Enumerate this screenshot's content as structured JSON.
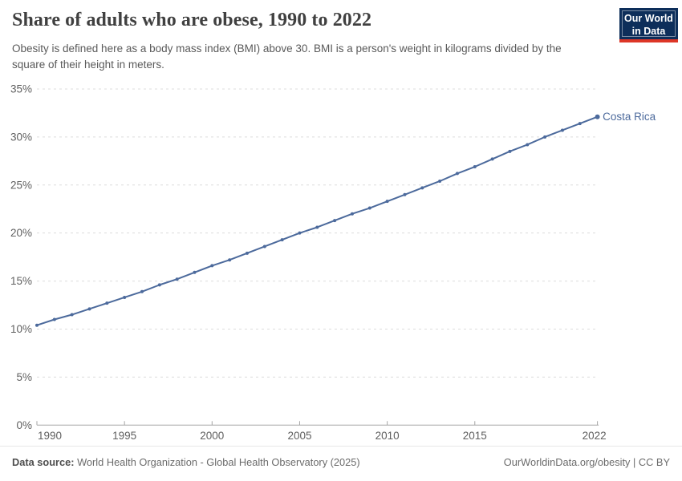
{
  "header": {
    "title": "Share of adults who are obese, 1990 to 2022",
    "subtitle": "Obesity is defined here as a body mass index (BMI) above 30. BMI is a person's weight in kilograms divided by the square of their height in meters.",
    "logo": {
      "line1": "Our World",
      "line2": "in Data",
      "bg_color": "#0d2e5a",
      "stripe_color": "#dd3627"
    }
  },
  "chart_data": {
    "type": "line",
    "title": "Share of adults who are obese, 1990 to 2022",
    "x": [
      1990,
      1991,
      1992,
      1993,
      1994,
      1995,
      1996,
      1997,
      1998,
      1999,
      2000,
      2001,
      2002,
      2003,
      2004,
      2005,
      2006,
      2007,
      2008,
      2009,
      2010,
      2011,
      2012,
      2013,
      2014,
      2015,
      2016,
      2017,
      2018,
      2019,
      2020,
      2021,
      2022
    ],
    "series": [
      {
        "name": "Costa Rica",
        "color": "#4C6A9C",
        "values": [
          10.4,
          11.0,
          11.5,
          12.1,
          12.7,
          13.3,
          13.9,
          14.6,
          15.2,
          15.9,
          16.6,
          17.2,
          17.9,
          18.6,
          19.3,
          20.0,
          20.6,
          21.3,
          22.0,
          22.6,
          23.3,
          24.0,
          24.7,
          25.4,
          26.2,
          26.9,
          27.7,
          28.5,
          29.2,
          30.0,
          30.7,
          31.4,
          32.1
        ]
      }
    ],
    "xlabel": "",
    "ylabel": "",
    "xlim": [
      1990,
      2022
    ],
    "ylim": [
      0,
      35
    ],
    "xticks": [
      1990,
      1995,
      2000,
      2005,
      2010,
      2015,
      2022
    ],
    "yticks": [
      0,
      5,
      10,
      15,
      20,
      25,
      30,
      35
    ],
    "ytick_suffix": "%",
    "grid": "horizontal-dashed",
    "legend_position": "line-end-label",
    "colors": {
      "grid": "#dcdcdc",
      "axis": "#a5a5a5",
      "tick_text": "#606060"
    }
  },
  "footer": {
    "source_label": "Data source:",
    "source_text": " World Health Organization - Global Health Observatory (2025)",
    "rights": "OurWorldinData.org/obesity | CC BY"
  }
}
